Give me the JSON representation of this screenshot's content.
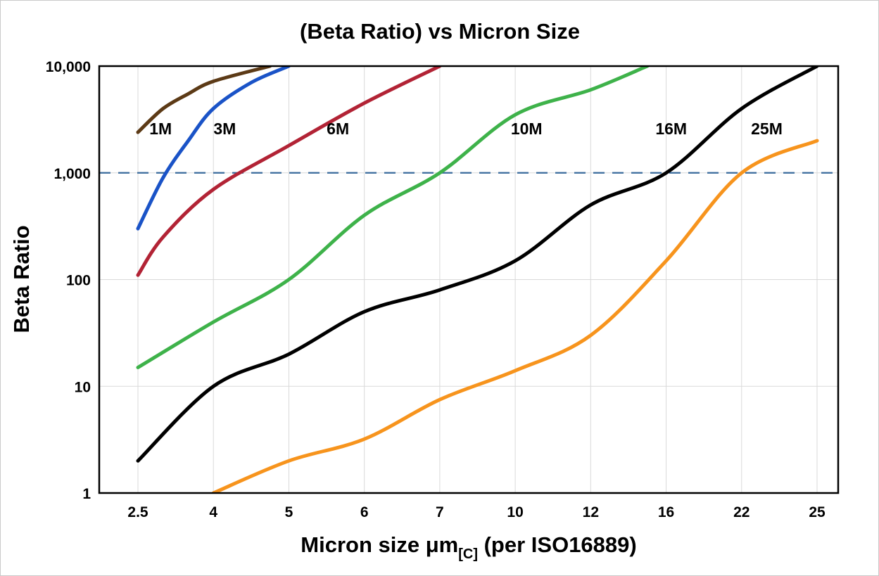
{
  "chart_data": {
    "type": "line",
    "title": "(Beta Ratio) vs Micron Size",
    "ylabel": "Beta Ratio",
    "xlabel_parts": [
      "Micron size μm",
      "[C]",
      " (per ISO16889)"
    ],
    "x_ticks": {
      "values": [
        2.5,
        4,
        5,
        6,
        7,
        10,
        12,
        16,
        22,
        25
      ],
      "labels": [
        "2.5",
        "4",
        "5",
        "6",
        "7",
        "10",
        "12",
        "16",
        "22",
        "25"
      ]
    },
    "y_ticks": {
      "values": [
        1,
        10,
        100,
        1000,
        10000
      ],
      "labels": [
        "1",
        "10",
        "100",
        "1,000",
        "10,000"
      ]
    },
    "y_scale": "log",
    "ylim": [
      1,
      10000
    ],
    "grid": true,
    "legend_position": "inline-labels",
    "reference_line": {
      "y": 1000,
      "style": "dashed",
      "color": "#3a6b9c"
    },
    "series": [
      {
        "name": "1M",
        "color": "#5c3a16",
        "label_pos": {
          "x": 2.95,
          "y": 2300
        },
        "points": [
          [
            2.5,
            2400
          ],
          [
            3,
            4000
          ],
          [
            3.5,
            5500
          ],
          [
            4,
            7200
          ],
          [
            4.75,
            10000
          ]
        ]
      },
      {
        "name": "3M",
        "color": "#1a53c7",
        "label_pos": {
          "x": 4.15,
          "y": 2300
        },
        "points": [
          [
            2.5,
            300
          ],
          [
            3,
            900
          ],
          [
            3.5,
            2000
          ],
          [
            4,
            4000
          ],
          [
            4.5,
            7000
          ],
          [
            5,
            10000
          ]
        ]
      },
      {
        "name": "6M",
        "color": "#b22335",
        "label_pos": {
          "x": 5.65,
          "y": 2300
        },
        "points": [
          [
            2.5,
            110
          ],
          [
            3,
            250
          ],
          [
            4,
            700
          ],
          [
            5,
            1800
          ],
          [
            6,
            4500
          ],
          [
            7,
            10000
          ]
        ]
      },
      {
        "name": "10M",
        "color": "#3eb24a",
        "label_pos": {
          "x": 10.3,
          "y": 2300
        },
        "points": [
          [
            2.5,
            15
          ],
          [
            4,
            40
          ],
          [
            5,
            100
          ],
          [
            6,
            400
          ],
          [
            7,
            1000
          ],
          [
            10,
            3500
          ],
          [
            12,
            6000
          ],
          [
            15,
            10000
          ]
        ]
      },
      {
        "name": "16M",
        "color": "#000000",
        "label_pos": {
          "x": 16.4,
          "y": 2300
        },
        "points": [
          [
            2.5,
            2
          ],
          [
            4,
            10
          ],
          [
            5,
            20
          ],
          [
            6,
            50
          ],
          [
            7,
            80
          ],
          [
            10,
            150
          ],
          [
            12,
            500
          ],
          [
            16,
            1000
          ],
          [
            22,
            4000
          ],
          [
            25,
            10000
          ]
        ]
      },
      {
        "name": "25M",
        "color": "#f7941d",
        "label_pos": {
          "x": 23,
          "y": 2300
        },
        "points": [
          [
            4,
            1
          ],
          [
            5,
            2
          ],
          [
            6,
            3.2
          ],
          [
            7,
            7.5
          ],
          [
            10,
            14
          ],
          [
            12,
            30
          ],
          [
            16,
            150
          ],
          [
            22,
            1000
          ],
          [
            25,
            2000
          ]
        ]
      }
    ]
  }
}
